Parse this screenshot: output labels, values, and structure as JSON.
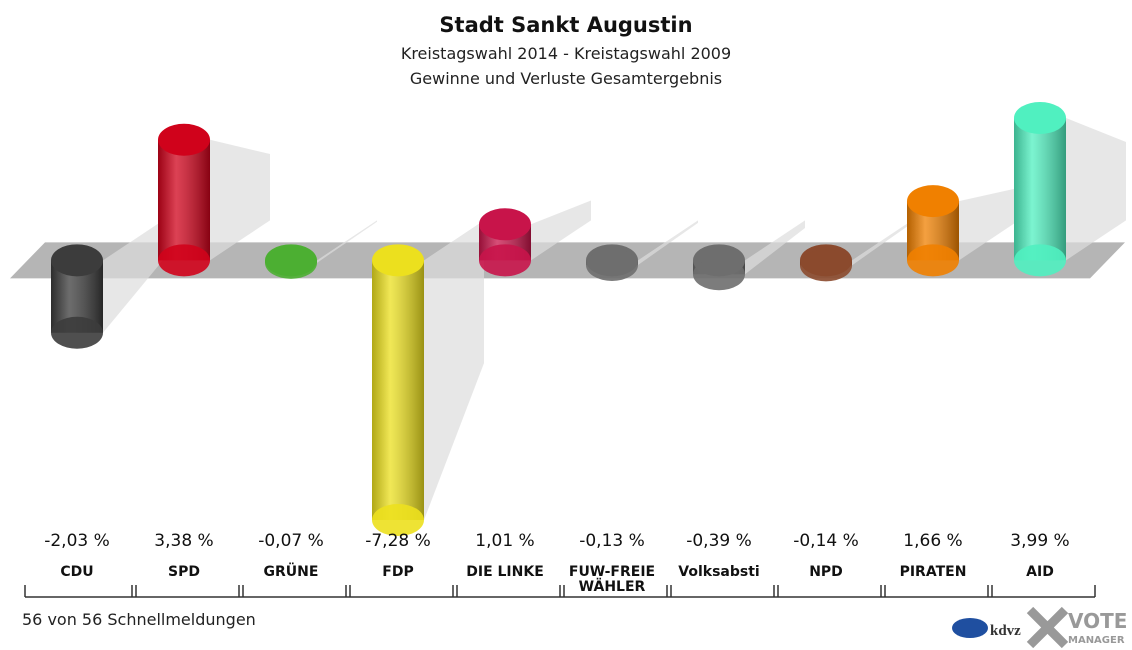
{
  "chart_data": {
    "type": "bar",
    "title": "Stadt Sankt Augustin",
    "subtitle": "Kreistagswahl 2014 - Kreistagswahl 2009",
    "subtitle2": "Gewinne und Verluste Gesamtergebnis",
    "categories": [
      "CDU",
      "SPD",
      "GRÜNE",
      "FDP",
      "DIE LINKE",
      "FUW-FREIE WÄHLER",
      "Volksabsti",
      "NPD",
      "PIRATEN",
      "AID"
    ],
    "values": [
      -2.03,
      3.38,
      -0.07,
      -7.28,
      1.01,
      -0.13,
      -0.39,
      -0.14,
      1.66,
      3.99
    ],
    "value_labels": [
      "-2,03 %",
      "3,38 %",
      "-0,07 %",
      "-7,28 %",
      "1,01 %",
      "-0,13 %",
      "-0,39 %",
      "-0,14 %",
      "1,66 %",
      "3,99 %"
    ],
    "colors": [
      "#3c3c3c",
      "#d0021b",
      "#4caf32",
      "#ece01e",
      "#c8144a",
      "#6e6e6e",
      "#6e6e6e",
      "#8b4a2e",
      "#f08000",
      "#50f0c0"
    ],
    "footer": "56 von 56 Schnellmeldungen",
    "logo_text": "kdvz",
    "logo_text2": "VOTE",
    "logo_text3": "MANAGER"
  }
}
